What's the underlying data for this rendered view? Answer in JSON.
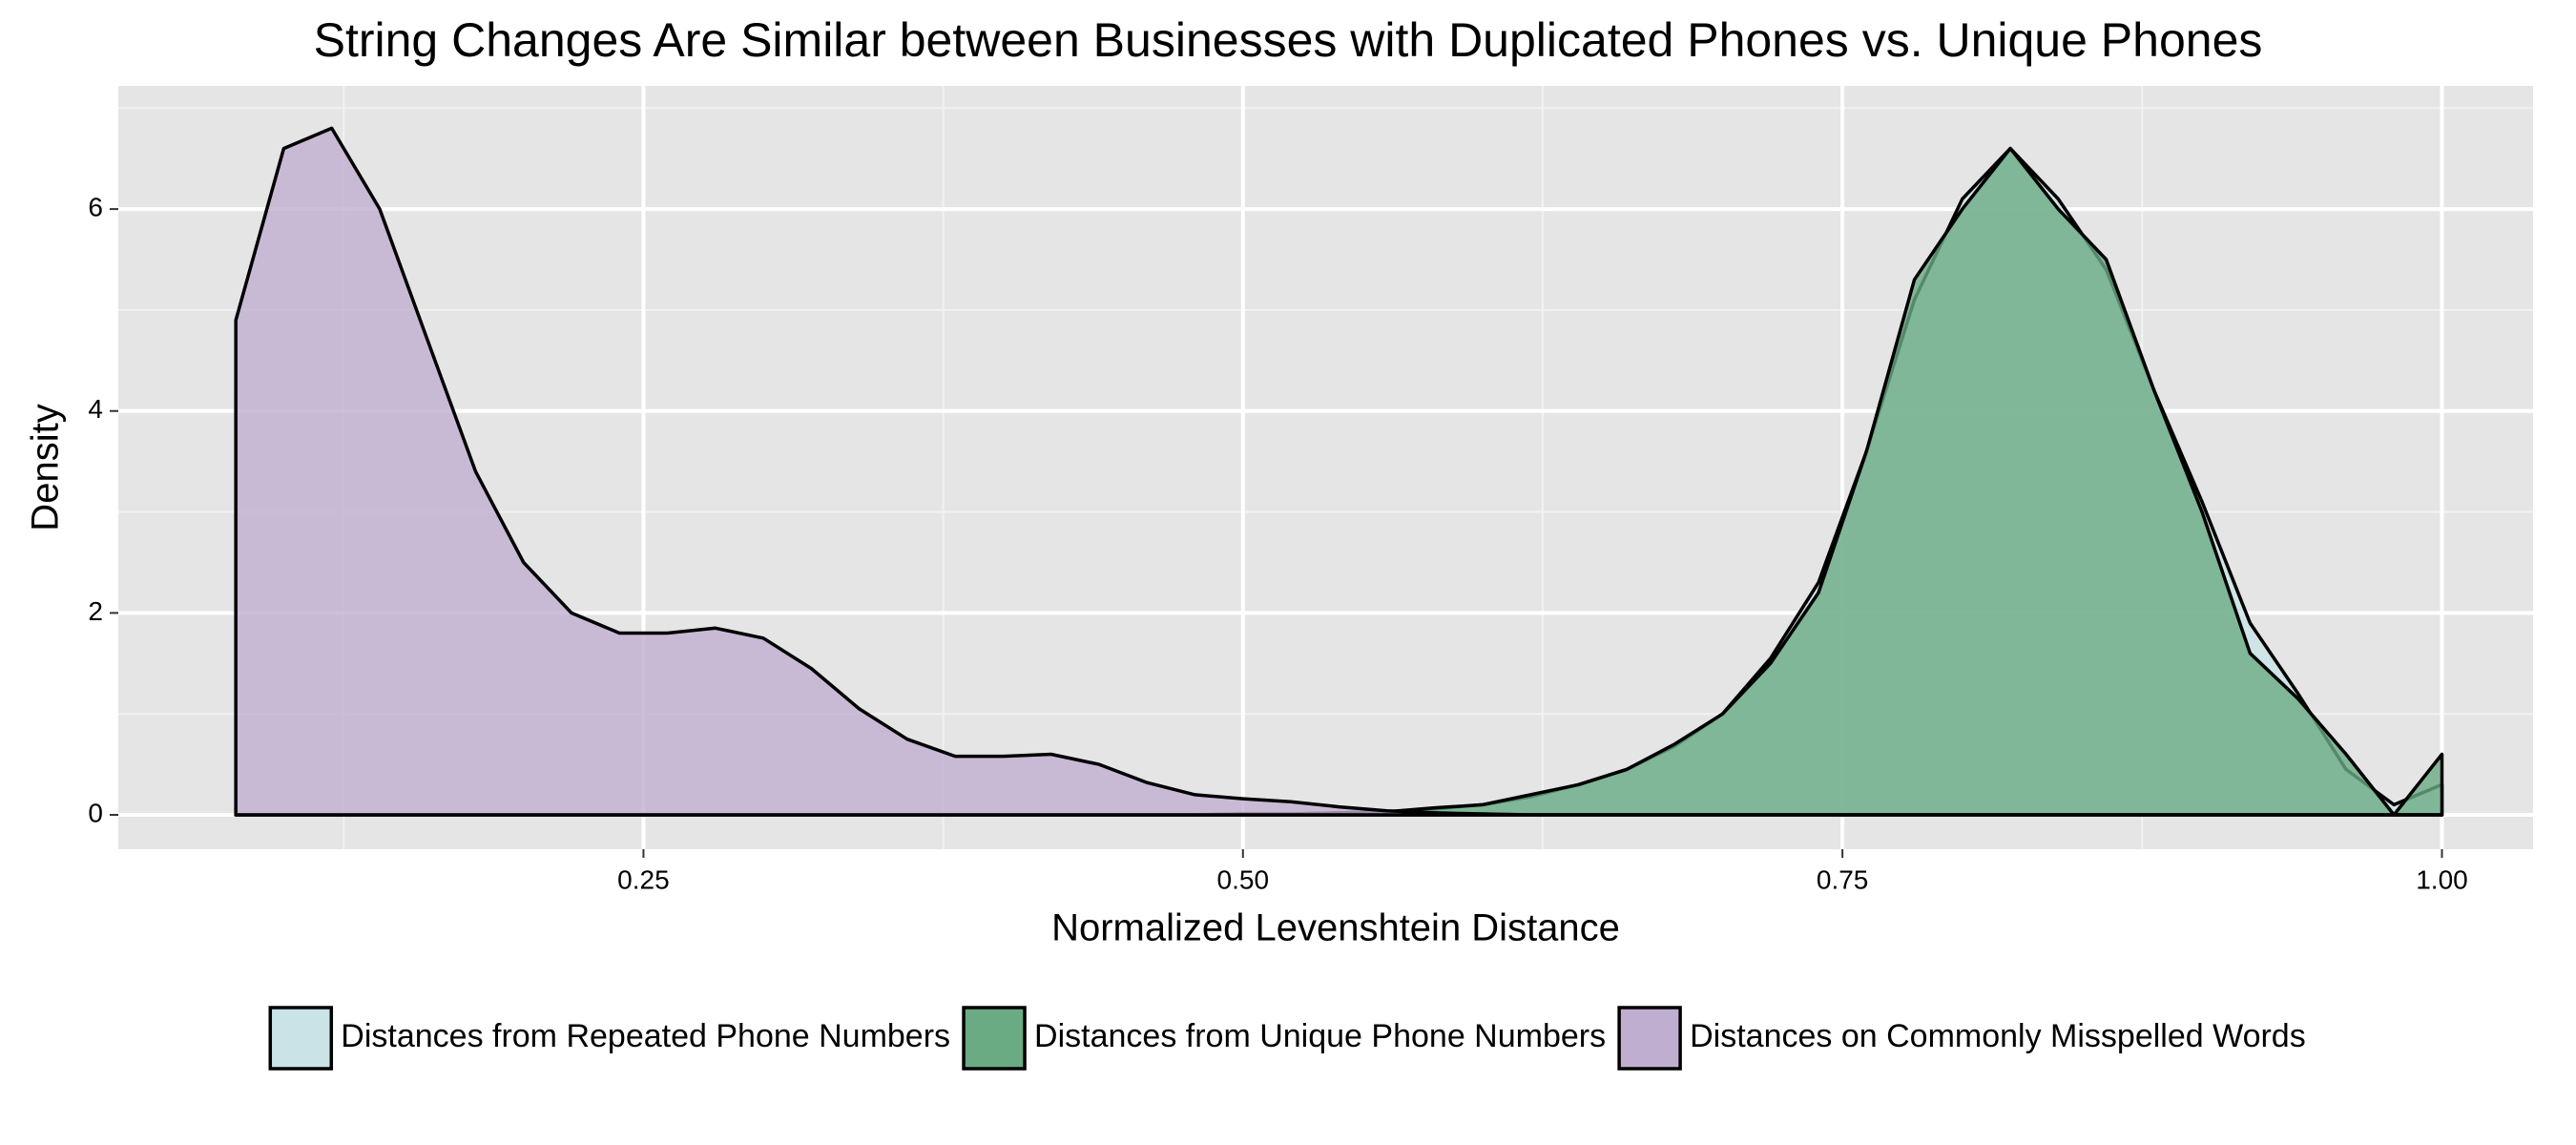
{
  "chart_data": {
    "type": "area",
    "title": "String Changes Are Similar between Businesses with Duplicated Phones vs. Unique Phones",
    "x_label": "Normalized Levenshtein Distance",
    "y_label": "Density",
    "x": [
      0.08,
      0.1,
      0.12,
      0.14,
      0.16,
      0.18,
      0.2,
      0.22,
      0.24,
      0.26,
      0.28,
      0.3,
      0.32,
      0.34,
      0.36,
      0.38,
      0.4,
      0.42,
      0.44,
      0.46,
      0.48,
      0.5,
      0.52,
      0.54,
      0.56,
      0.58,
      0.6,
      0.62,
      0.64,
      0.66,
      0.68,
      0.7,
      0.72,
      0.74,
      0.76,
      0.78,
      0.8,
      0.82,
      0.84,
      0.86,
      0.88,
      0.9,
      0.92,
      0.94,
      0.96,
      0.98,
      1.0
    ],
    "series": [
      {
        "name": "Distances from Repeated Phone Numbers",
        "color": "#c9e3e6",
        "values": [
          0,
          0,
          0,
          0,
          0,
          0,
          0,
          0,
          0,
          0,
          0,
          0,
          0,
          0,
          0,
          0,
          0,
          0,
          0,
          0,
          0,
          0.01,
          0.01,
          0.02,
          0.03,
          0.06,
          0.1,
          0.18,
          0.3,
          0.45,
          0.68,
          1.0,
          1.55,
          2.3,
          3.6,
          5.1,
          6.1,
          6.6,
          6.1,
          5.4,
          4.2,
          3.1,
          1.9,
          1.2,
          0.45,
          0.1,
          0.3
        ]
      },
      {
        "name": "Distances from Unique Phone Numbers",
        "color": "#6aab84",
        "values": [
          0,
          0,
          0,
          0,
          0,
          0,
          0,
          0,
          0,
          0,
          0,
          0,
          0,
          0,
          0,
          0,
          0,
          0,
          0,
          0,
          0,
          0.01,
          0.01,
          0.02,
          0.03,
          0.07,
          0.1,
          0.2,
          0.3,
          0.45,
          0.7,
          1.0,
          1.5,
          2.2,
          3.6,
          5.3,
          6.0,
          6.6,
          6.0,
          5.5,
          4.2,
          3.0,
          1.6,
          1.15,
          0.6,
          0.0,
          0.6
        ]
      },
      {
        "name": "Distances on Commonly Misspelled Words",
        "color": "#c0aed0",
        "values": [
          4.9,
          6.6,
          6.8,
          6.0,
          4.7,
          3.4,
          2.5,
          2.0,
          1.8,
          1.8,
          1.85,
          1.75,
          1.45,
          1.05,
          0.75,
          0.58,
          0.58,
          0.6,
          0.5,
          0.32,
          0.2,
          0.16,
          0.13,
          0.08,
          0.04,
          0.02,
          0.01,
          0,
          0,
          0,
          0,
          0,
          0,
          0,
          0,
          0,
          0,
          0,
          0,
          0,
          0,
          0,
          0,
          0,
          0,
          0,
          0
        ]
      }
    ],
    "xlim": [
      0.031,
      1.038
    ],
    "ylim": [
      -0.34,
      7.22
    ],
    "xticks": [
      0.25,
      {
        "value": 0.5,
        "label": "0.50"
      },
      0.75,
      {
        "value": 1,
        "label": "1.00"
      }
    ],
    "yticks": [
      0,
      2,
      4,
      6
    ],
    "grid": true,
    "legend": "bottom"
  }
}
